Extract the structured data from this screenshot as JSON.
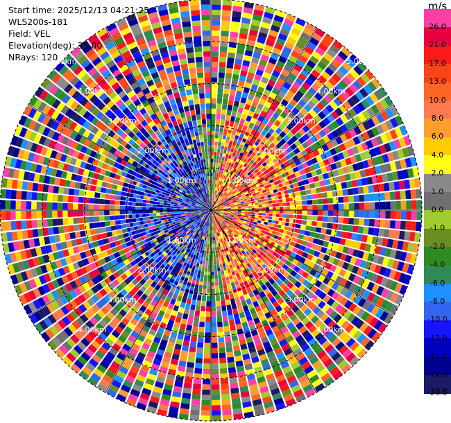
{
  "header": {
    "start_time": "Start time: 2025/12/13 04:21:25",
    "instrument": "WLS200s-181",
    "field": "Field: VEL",
    "elevation": "Elevation(deg): 35.00",
    "nrays": "NRays: 120"
  },
  "range_labels": [
    "1.00km",
    "2.00km",
    "3.00km",
    "4.00km",
    "5.00km"
  ],
  "colorbar": {
    "unit": "m/s",
    "entries": [
      {
        "label": "26.0",
        "color": "#ff3fa5"
      },
      {
        "label": "21.0",
        "color": "#e8003f"
      },
      {
        "label": "17.0",
        "color": "#ff1a1a"
      },
      {
        "label": "13.0",
        "color": "#ff4418"
      },
      {
        "label": "10.0",
        "color": "#ff6626"
      },
      {
        "label": "8.0",
        "color": "#ff7a4e"
      },
      {
        "label": "6.0",
        "color": "#ff9e2a"
      },
      {
        "label": "4.0",
        "color": "#ffcc00"
      },
      {
        "label": "2.0",
        "color": "#ffff10"
      },
      {
        "label": "1.0",
        "color": "#8a8a8a"
      },
      {
        "label": "0.0",
        "color": "#707070"
      },
      {
        "label": "-1.0",
        "color": "#a0cc2e"
      },
      {
        "label": "-2.0",
        "color": "#6b8e23"
      },
      {
        "label": "-4.0",
        "color": "#2e8b22"
      },
      {
        "label": "-6.0",
        "color": "#2e8b57"
      },
      {
        "label": "-8.0",
        "color": "#1e90ff"
      },
      {
        "label": "-10.0",
        "color": "#3366ee"
      },
      {
        "label": "-13.0",
        "color": "#1515ff"
      },
      {
        "label": "-17.0",
        "color": "#0000c0"
      },
      {
        "label": "-21.0",
        "color": "#000090"
      },
      {
        "label": "-26.0",
        "color": "#1a1a66"
      },
      {
        "label": "-30.0",
        "color": "#1a1a66"
      }
    ]
  },
  "display": {
    "center_color": "#ffffff",
    "grid_color": "#000000",
    "range_label_color": "#ffffff"
  }
}
